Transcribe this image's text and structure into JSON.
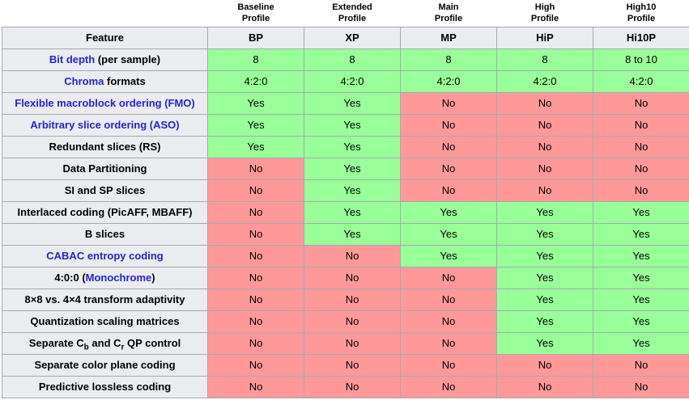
{
  "colors": {
    "yes_green": "#99ff99",
    "no_red": "#ff9999",
    "header_bg": "#eaecf0",
    "border": "#a2a9b1",
    "link_blue": "#2525cb",
    "text": "#000000"
  },
  "table": {
    "profiles": [
      {
        "label": "Baseline\nProfile"
      },
      {
        "label": "Extended\nProfile"
      },
      {
        "label": "Main\nProfile"
      },
      {
        "label": "High\nProfile"
      },
      {
        "label": "High10\nProfile"
      }
    ],
    "columns": [
      "Feature",
      "BP",
      "XP",
      "MP",
      "HiP",
      "Hi10P"
    ],
    "rows": [
      {
        "feature": [
          {
            "type": "link",
            "text": "Bit depth"
          },
          {
            "type": "text",
            "text": " (per sample)"
          }
        ],
        "values": [
          {
            "text": "8",
            "tone": "green"
          },
          {
            "text": "8",
            "tone": "green"
          },
          {
            "text": "8",
            "tone": "green"
          },
          {
            "text": "8",
            "tone": "green"
          },
          {
            "text": "8 to 10",
            "tone": "green"
          }
        ]
      },
      {
        "feature": [
          {
            "type": "link",
            "text": "Chroma"
          },
          {
            "type": "text",
            "text": " formats"
          }
        ],
        "values": [
          {
            "text": "4:2:0",
            "tone": "green"
          },
          {
            "text": "4:2:0",
            "tone": "green"
          },
          {
            "text": "4:2:0",
            "tone": "green"
          },
          {
            "text": "4:2:0",
            "tone": "green"
          },
          {
            "text": "4:2:0",
            "tone": "green"
          }
        ]
      },
      {
        "feature": [
          {
            "type": "link",
            "text": "Flexible macroblock ordering (FMO)"
          }
        ],
        "values": [
          {
            "text": "Yes",
            "tone": "green"
          },
          {
            "text": "Yes",
            "tone": "green"
          },
          {
            "text": "No",
            "tone": "red"
          },
          {
            "text": "No",
            "tone": "red"
          },
          {
            "text": "No",
            "tone": "red"
          }
        ]
      },
      {
        "feature": [
          {
            "type": "link",
            "text": "Arbitrary slice ordering (ASO)"
          }
        ],
        "values": [
          {
            "text": "Yes",
            "tone": "green"
          },
          {
            "text": "Yes",
            "tone": "green"
          },
          {
            "text": "No",
            "tone": "red"
          },
          {
            "text": "No",
            "tone": "red"
          },
          {
            "text": "No",
            "tone": "red"
          }
        ]
      },
      {
        "feature": [
          {
            "type": "text",
            "text": "Redundant slices (RS)"
          }
        ],
        "values": [
          {
            "text": "Yes",
            "tone": "green"
          },
          {
            "text": "Yes",
            "tone": "green"
          },
          {
            "text": "No",
            "tone": "red"
          },
          {
            "text": "No",
            "tone": "red"
          },
          {
            "text": "No",
            "tone": "red"
          }
        ]
      },
      {
        "feature": [
          {
            "type": "text",
            "text": "Data Partitioning"
          }
        ],
        "values": [
          {
            "text": "No",
            "tone": "red"
          },
          {
            "text": "Yes",
            "tone": "green"
          },
          {
            "text": "No",
            "tone": "red"
          },
          {
            "text": "No",
            "tone": "red"
          },
          {
            "text": "No",
            "tone": "red"
          }
        ]
      },
      {
        "feature": [
          {
            "type": "text",
            "text": "SI and SP slices"
          }
        ],
        "values": [
          {
            "text": "No",
            "tone": "red"
          },
          {
            "text": "Yes",
            "tone": "green"
          },
          {
            "text": "No",
            "tone": "red"
          },
          {
            "text": "No",
            "tone": "red"
          },
          {
            "text": "No",
            "tone": "red"
          }
        ]
      },
      {
        "feature": [
          {
            "type": "text",
            "text": "Interlaced coding (PicAFF, MBAFF)"
          }
        ],
        "values": [
          {
            "text": "No",
            "tone": "red"
          },
          {
            "text": "Yes",
            "tone": "green"
          },
          {
            "text": "Yes",
            "tone": "green"
          },
          {
            "text": "Yes",
            "tone": "green"
          },
          {
            "text": "Yes",
            "tone": "green"
          }
        ]
      },
      {
        "feature": [
          {
            "type": "text",
            "text": "B slices"
          }
        ],
        "values": [
          {
            "text": "No",
            "tone": "red"
          },
          {
            "text": "Yes",
            "tone": "green"
          },
          {
            "text": "Yes",
            "tone": "green"
          },
          {
            "text": "Yes",
            "tone": "green"
          },
          {
            "text": "Yes",
            "tone": "green"
          }
        ]
      },
      {
        "feature": [
          {
            "type": "link",
            "text": "CABAC entropy coding"
          }
        ],
        "values": [
          {
            "text": "No",
            "tone": "red"
          },
          {
            "text": "No",
            "tone": "red"
          },
          {
            "text": "Yes",
            "tone": "green"
          },
          {
            "text": "Yes",
            "tone": "green"
          },
          {
            "text": "Yes",
            "tone": "green"
          }
        ]
      },
      {
        "feature": [
          {
            "type": "text",
            "text": "4:0:0 ("
          },
          {
            "type": "link",
            "text": "Monochrome"
          },
          {
            "type": "text",
            "text": ")"
          }
        ],
        "values": [
          {
            "text": "No",
            "tone": "red"
          },
          {
            "text": "No",
            "tone": "red"
          },
          {
            "text": "No",
            "tone": "red"
          },
          {
            "text": "Yes",
            "tone": "green"
          },
          {
            "text": "Yes",
            "tone": "green"
          }
        ]
      },
      {
        "feature": [
          {
            "type": "text",
            "text": "8×8 vs. 4×4 transform adaptivity"
          }
        ],
        "values": [
          {
            "text": "No",
            "tone": "red"
          },
          {
            "text": "No",
            "tone": "red"
          },
          {
            "text": "No",
            "tone": "red"
          },
          {
            "text": "Yes",
            "tone": "green"
          },
          {
            "text": "Yes",
            "tone": "green"
          }
        ]
      },
      {
        "feature": [
          {
            "type": "text",
            "text": "Quantization scaling matrices"
          }
        ],
        "values": [
          {
            "text": "No",
            "tone": "red"
          },
          {
            "text": "No",
            "tone": "red"
          },
          {
            "text": "No",
            "tone": "red"
          },
          {
            "text": "Yes",
            "tone": "green"
          },
          {
            "text": "Yes",
            "tone": "green"
          }
        ]
      },
      {
        "feature": [
          {
            "type": "text",
            "text": "Separate C"
          },
          {
            "type": "sub",
            "text": "b"
          },
          {
            "type": "text",
            "text": " and C"
          },
          {
            "type": "sub",
            "text": "r"
          },
          {
            "type": "text",
            "text": " QP control"
          }
        ],
        "values": [
          {
            "text": "No",
            "tone": "red"
          },
          {
            "text": "No",
            "tone": "red"
          },
          {
            "text": "No",
            "tone": "red"
          },
          {
            "text": "Yes",
            "tone": "green"
          },
          {
            "text": "Yes",
            "tone": "green"
          }
        ]
      },
      {
        "feature": [
          {
            "type": "text",
            "text": "Separate color plane coding"
          }
        ],
        "values": [
          {
            "text": "No",
            "tone": "red"
          },
          {
            "text": "No",
            "tone": "red"
          },
          {
            "text": "No",
            "tone": "red"
          },
          {
            "text": "No",
            "tone": "red"
          },
          {
            "text": "No",
            "tone": "red"
          }
        ]
      },
      {
        "feature": [
          {
            "type": "text",
            "text": "Predictive lossless coding"
          }
        ],
        "values": [
          {
            "text": "No",
            "tone": "red"
          },
          {
            "text": "No",
            "tone": "red"
          },
          {
            "text": "No",
            "tone": "red"
          },
          {
            "text": "No",
            "tone": "red"
          },
          {
            "text": "No",
            "tone": "red"
          }
        ]
      }
    ]
  }
}
